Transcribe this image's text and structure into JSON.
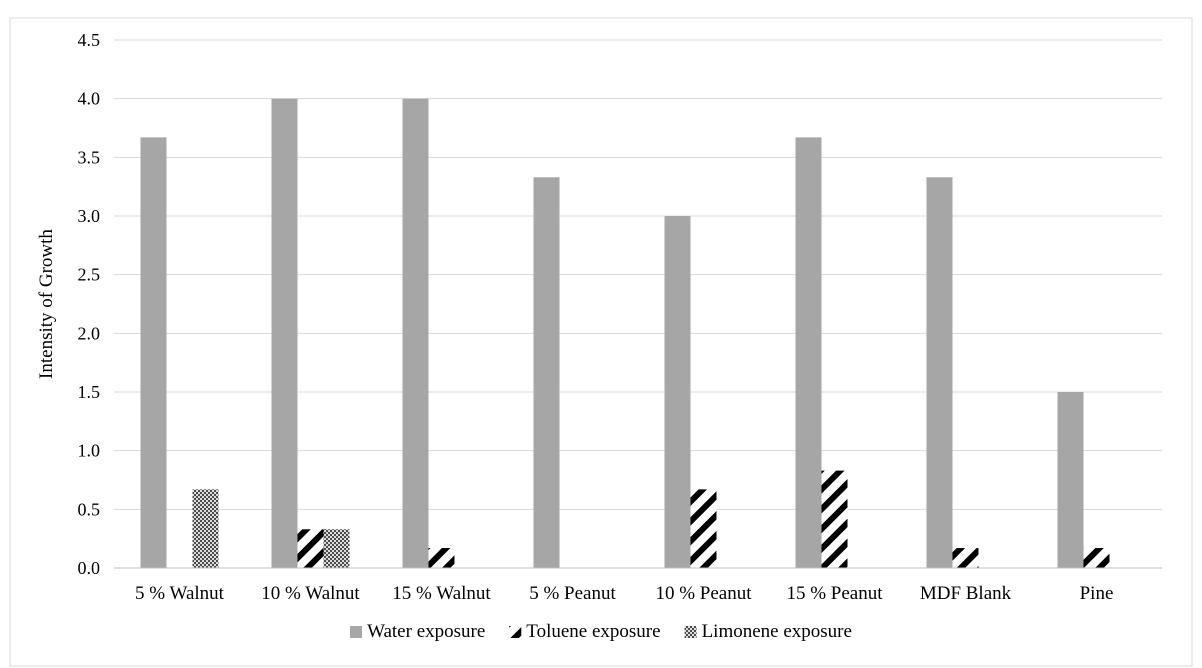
{
  "chart_data": {
    "type": "bar",
    "title": "",
    "xlabel": "",
    "ylabel": "Intensity of Growth",
    "ylim": [
      0,
      4.5
    ],
    "yticks": [
      "0.0",
      "0.5",
      "1.0",
      "1.5",
      "2.0",
      "2.5",
      "3.0",
      "3.5",
      "4.0",
      "4.5"
    ],
    "ytick_values": [
      0,
      0.5,
      1.0,
      1.5,
      2.0,
      2.5,
      3.0,
      3.5,
      4.0,
      4.5
    ],
    "grid": true,
    "legend_position": "bottom",
    "categories": [
      "5 % Walnut",
      "10 % Walnut",
      "15 % Walnut",
      "5 % Peanut",
      "10 % Peanut",
      "15 % Peanut",
      "MDF Blank",
      "Pine"
    ],
    "series": [
      {
        "name": "Water exposure",
        "values": [
          3.67,
          4.0,
          4.0,
          3.33,
          3.0,
          3.67,
          3.33,
          1.5
        ],
        "color": "#a6a6a6",
        "pattern": "solid"
      },
      {
        "name": "Toluene exposure",
        "values": [
          0,
          0.33,
          0.17,
          0,
          0.67,
          0.83,
          0.17,
          0.17
        ],
        "color": "#000000",
        "pattern": "diagonal-stripes"
      },
      {
        "name": "Limonene exposure",
        "values": [
          0.67,
          0.33,
          0,
          0,
          0,
          0,
          0,
          0
        ],
        "color": "#5a5a5a",
        "pattern": "checker"
      }
    ]
  }
}
